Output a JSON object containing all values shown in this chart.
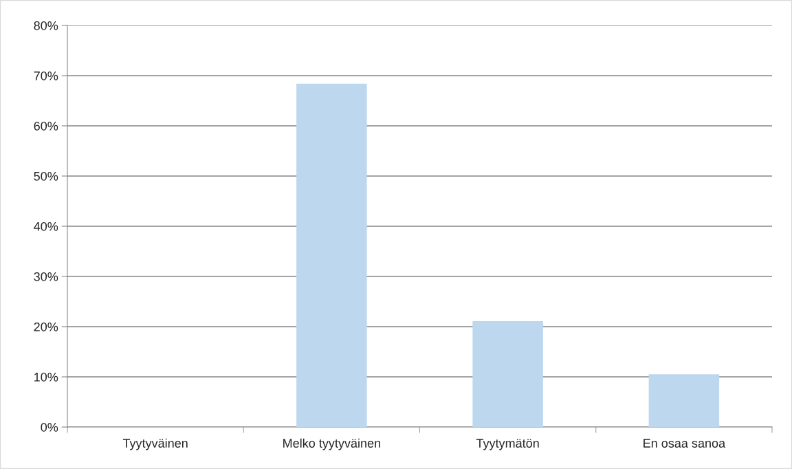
{
  "chart_data": {
    "type": "bar",
    "categories": [
      "Tyytyväinen",
      "Melko tyytyväinen",
      "Tyytymätön",
      "En osaa sanoa"
    ],
    "values": [
      0,
      68.4,
      21.1,
      10.5
    ],
    "color": "#bdd7ee",
    "ylim": [
      0,
      80
    ],
    "yticks": [
      {
        "value": 0,
        "label": "0%"
      },
      {
        "value": 10,
        "label": "10%"
      },
      {
        "value": 20,
        "label": "20%"
      },
      {
        "value": 30,
        "label": "30%"
      },
      {
        "value": 40,
        "label": "40%"
      },
      {
        "value": 50,
        "label": "50%"
      },
      {
        "value": 60,
        "label": "60%"
      },
      {
        "value": 70,
        "label": "70%"
      },
      {
        "value": 80,
        "label": "80%"
      }
    ],
    "grid": "y",
    "legend": false
  }
}
